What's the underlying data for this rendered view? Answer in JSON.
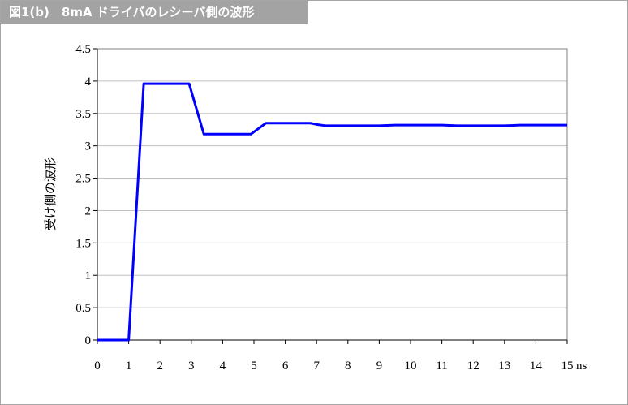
{
  "title": "図1(b)　8mA ドライバのレシーバ側の波形",
  "chart_data": {
    "type": "line",
    "title": "図1(b)　8mA ドライバのレシーバ側の波形",
    "xlabel": "ns",
    "ylabel": "受け側の波形",
    "xlim": [
      0,
      15
    ],
    "ylim": [
      0,
      4.5
    ],
    "x_ticks": [
      "0",
      "1",
      "2",
      "3",
      "4",
      "5",
      "6",
      "7",
      "8",
      "9",
      "10",
      "11",
      "12",
      "13",
      "14",
      "15"
    ],
    "y_ticks": [
      "0",
      "0.5",
      "1",
      "1.5",
      "2",
      "2.5",
      "3",
      "3.5",
      "4",
      "4.5"
    ],
    "grid": "horizontal",
    "line_color": "#0000ff",
    "series": [
      {
        "x": [
          0,
          1,
          1.48,
          2.93,
          3.4,
          4.9,
          5.38,
          6.8,
          7.0,
          7.3,
          9.0,
          9.5,
          11.0,
          11.5,
          13.0,
          13.5,
          15.0
        ],
        "y": [
          0,
          0,
          3.96,
          3.96,
          3.18,
          3.18,
          3.35,
          3.35,
          3.33,
          3.31,
          3.31,
          3.32,
          3.32,
          3.31,
          3.31,
          3.32,
          3.32
        ]
      }
    ]
  }
}
